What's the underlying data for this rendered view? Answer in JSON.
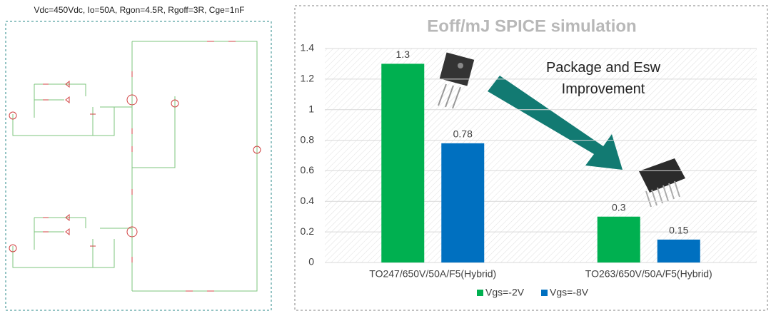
{
  "caption": "Vdc=450Vdc, Io=50A, Rgon=4.5R, Rgoff=3R, Cge=1nF",
  "chart_data": {
    "type": "bar",
    "title": "Eoff/mJ SPICE simulation",
    "categories": [
      "TO247/650V/50A/F5(Hybrid)",
      "TO263/650V/50A/F5(Hybrid)"
    ],
    "series": [
      {
        "name": "Vgs=-2V",
        "color": "#00b050",
        "values": [
          1.3,
          0.3
        ]
      },
      {
        "name": "Vgs=-8V",
        "color": "#0070c0",
        "values": [
          0.78,
          0.15
        ]
      }
    ],
    "ylim": [
      0,
      1.4
    ],
    "yticks": [
      0,
      0.2,
      0.4,
      0.6,
      0.8,
      1,
      1.2,
      1.4
    ],
    "grid": true,
    "legend": "bottom",
    "annotation": [
      "Package and Esw",
      "Improvement"
    ]
  }
}
